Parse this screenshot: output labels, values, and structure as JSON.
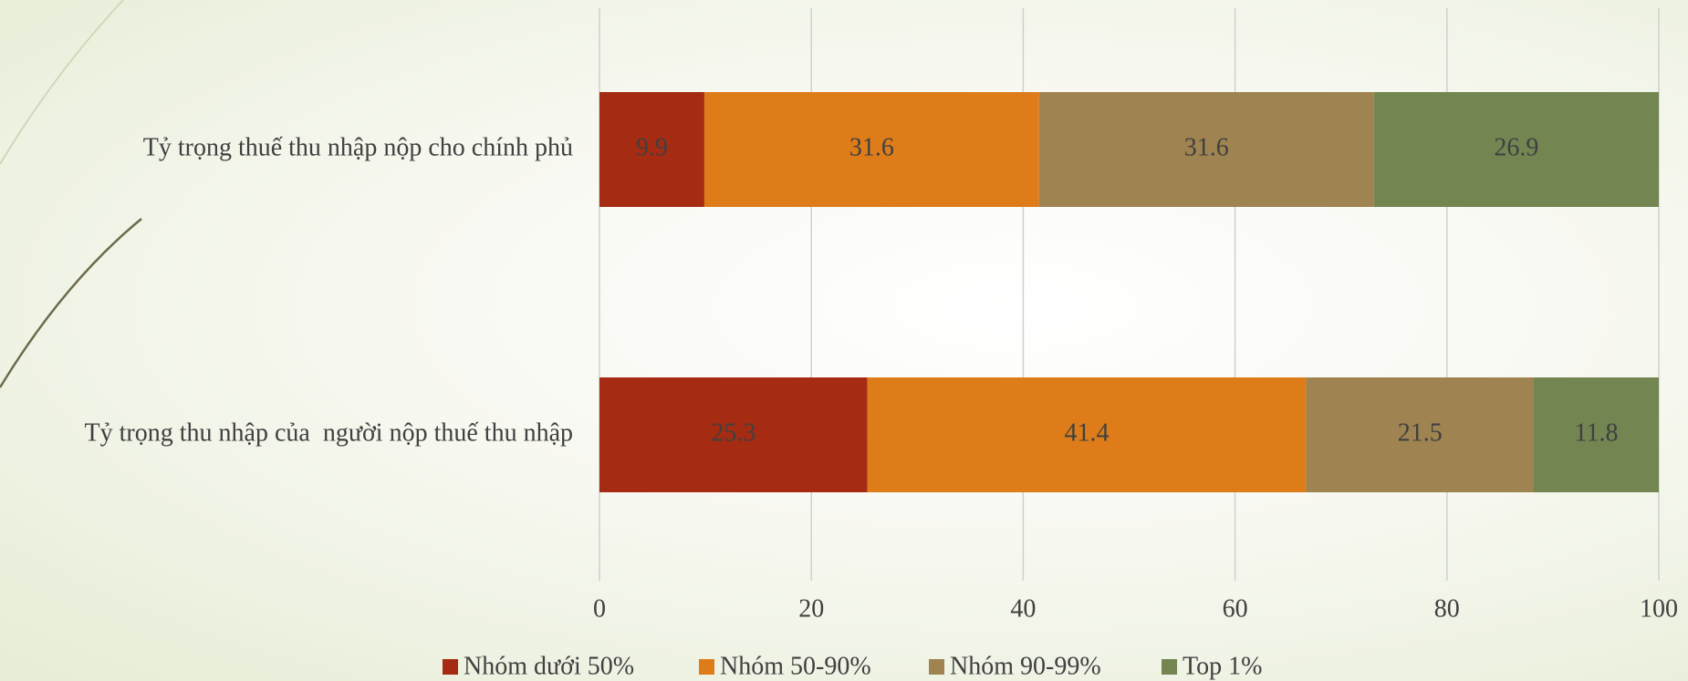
{
  "chart_data": {
    "type": "stacked-bar-horizontal",
    "categories": [
      "Tỷ trọng thuế thu nhập nộp cho chính phủ",
      "Tỷ trọng thu nhập của  người nộp thuế thu nhập"
    ],
    "series": [
      {
        "name": "Nhóm dưới 50%",
        "color": "#a52c12",
        "values": [
          9.9,
          25.3
        ]
      },
      {
        "name": "Nhóm 50-90%",
        "color": "#de7c19",
        "values": [
          31.6,
          41.4
        ]
      },
      {
        "name": "Nhóm 90-99%",
        "color": "#9f8351",
        "values": [
          31.6,
          21.5
        ]
      },
      {
        "name": "Top 1%",
        "color": "#738652",
        "values": [
          26.9,
          11.8
        ]
      }
    ],
    "xlim": [
      0,
      100
    ],
    "xticks": [
      0,
      20,
      40,
      60,
      80,
      100
    ],
    "grid": true,
    "legend": "bottom"
  }
}
